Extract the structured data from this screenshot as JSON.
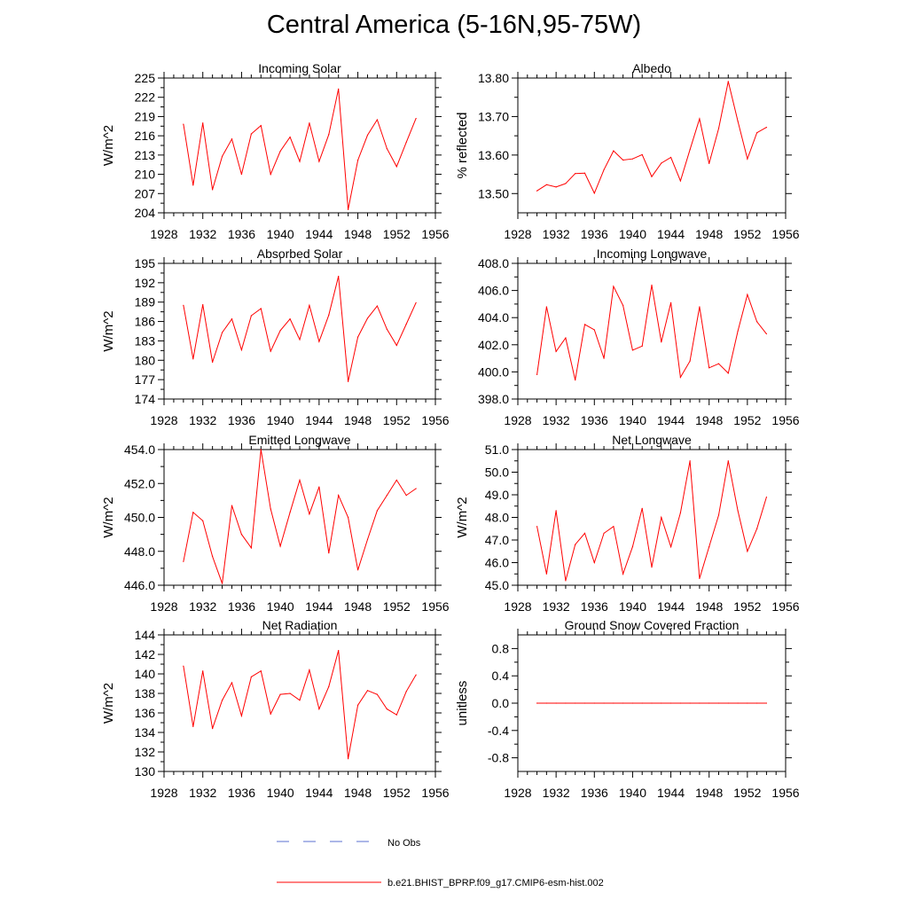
{
  "figure_title": "Central America (5-16N,95-75W)",
  "legend": {
    "obs_label": "No Obs",
    "model_label": "b.e21.BHIST_BPRP.f09_g17.CMIP6-esm-hist.002",
    "obs_color": "#5a6fd0",
    "model_color": "#ff0000"
  },
  "chart_data": [
    {
      "type": "line",
      "title": "Incoming Solar",
      "ylabel": "W/m^2",
      "xlim": [
        1928,
        1956
      ],
      "ylim": [
        204,
        225
      ],
      "yticks": [
        "204",
        "207",
        "210",
        "213",
        "216",
        "219",
        "222",
        "225"
      ],
      "ytick_values": [
        204,
        207,
        210,
        213,
        216,
        219,
        222,
        225
      ],
      "xticks": [
        "1928",
        "1932",
        "1936",
        "1940",
        "1944",
        "1948",
        "1952",
        "1956"
      ],
      "x": [
        1930,
        1931,
        1932,
        1933,
        1934,
        1935,
        1936,
        1937,
        1938,
        1939,
        1940,
        1941,
        1942,
        1943,
        1944,
        1945,
        1946,
        1947,
        1948,
        1949,
        1950,
        1951,
        1952,
        1953,
        1954
      ],
      "series": [
        {
          "name": "b.e21.BHIST_BPRP.f09_g17.CMIP6-esm-hist.002",
          "values": [
            217.8,
            208.3,
            218.0,
            207.6,
            212.8,
            215.5,
            210.0,
            216.3,
            217.6,
            210.0,
            213.6,
            215.8,
            212.0,
            218.0,
            212.0,
            216.2,
            223.3,
            204.5,
            212.2,
            216.1,
            218.5,
            214.0,
            211.2,
            215.0,
            218.7
          ]
        }
      ]
    },
    {
      "type": "line",
      "title": "Albedo",
      "ylabel": "% reflected",
      "xlim": [
        1928,
        1956
      ],
      "ylim": [
        13.45,
        13.8
      ],
      "yticks": [
        "13.50",
        "13.60",
        "13.70",
        "13.80"
      ],
      "ytick_values": [
        13.5,
        13.6,
        13.7,
        13.8
      ],
      "xticks": [
        "1928",
        "1932",
        "1936",
        "1940",
        "1944",
        "1948",
        "1952",
        "1956"
      ],
      "x": [
        1930,
        1931,
        1932,
        1933,
        1934,
        1935,
        1936,
        1937,
        1938,
        1939,
        1940,
        1941,
        1942,
        1943,
        1944,
        1945,
        1946,
        1947,
        1948,
        1949,
        1950,
        1951,
        1952,
        1953,
        1954
      ],
      "series": [
        {
          "name": "b.e21.BHIST_BPRP.f09_g17.CMIP6-esm-hist.002",
          "values": [
            13.507,
            13.523,
            13.517,
            13.526,
            13.552,
            13.553,
            13.501,
            13.562,
            13.611,
            13.587,
            13.59,
            13.601,
            13.544,
            13.579,
            13.594,
            13.533,
            13.614,
            13.694,
            13.578,
            13.669,
            13.791,
            13.688,
            13.59,
            13.658,
            13.672
          ]
        }
      ]
    },
    {
      "type": "line",
      "title": "Absorbed Solar",
      "ylabel": "W/m^2",
      "xlim": [
        1928,
        1956
      ],
      "ylim": [
        174,
        195
      ],
      "yticks": [
        "174",
        "177",
        "180",
        "183",
        "186",
        "189",
        "192",
        "195"
      ],
      "ytick_values": [
        174,
        177,
        180,
        183,
        186,
        189,
        192,
        195
      ],
      "xticks": [
        "1928",
        "1932",
        "1936",
        "1940",
        "1944",
        "1948",
        "1952",
        "1956"
      ],
      "x": [
        1930,
        1931,
        1932,
        1933,
        1934,
        1935,
        1936,
        1937,
        1938,
        1939,
        1940,
        1941,
        1942,
        1943,
        1944,
        1945,
        1946,
        1947,
        1948,
        1949,
        1950,
        1951,
        1952,
        1953,
        1954
      ],
      "series": [
        {
          "name": "b.e21.BHIST_BPRP.f09_g17.CMIP6-esm-hist.002",
          "values": [
            188.5,
            180.2,
            188.6,
            179.7,
            184.3,
            186.4,
            181.6,
            186.9,
            188.0,
            181.4,
            184.6,
            186.4,
            183.2,
            188.5,
            182.9,
            187.0,
            193.0,
            176.7,
            183.6,
            186.5,
            188.4,
            184.8,
            182.3,
            185.6,
            188.9
          ]
        }
      ]
    },
    {
      "type": "line",
      "title": "Incoming Longwave",
      "ylabel": "",
      "xlim": [
        1928,
        1956
      ],
      "ylim": [
        398.0,
        408.0
      ],
      "yticks": [
        "398.0",
        "400.0",
        "402.0",
        "404.0",
        "406.0",
        "408.0"
      ],
      "ytick_values": [
        398.0,
        400.0,
        402.0,
        404.0,
        406.0,
        408.0
      ],
      "xticks": [
        "1928",
        "1932",
        "1936",
        "1940",
        "1944",
        "1948",
        "1952",
        "1956"
      ],
      "x": [
        1930,
        1931,
        1932,
        1933,
        1934,
        1935,
        1936,
        1937,
        1938,
        1939,
        1940,
        1941,
        1942,
        1943,
        1944,
        1945,
        1946,
        1947,
        1948,
        1949,
        1950,
        1951,
        1952,
        1953,
        1954
      ],
      "series": [
        {
          "name": "b.e21.BHIST_BPRP.f09_g17.CMIP6-esm-hist.002",
          "values": [
            399.8,
            404.8,
            401.5,
            402.5,
            399.4,
            403.5,
            403.1,
            401.0,
            406.3,
            404.9,
            401.6,
            401.9,
            406.4,
            402.2,
            405.1,
            399.6,
            400.8,
            404.8,
            400.3,
            400.6,
            399.9,
            403.0,
            405.7,
            403.7,
            402.8
          ]
        }
      ]
    },
    {
      "type": "line",
      "title": "Emitted Longwave",
      "ylabel": "W/m^2",
      "xlim": [
        1928,
        1956
      ],
      "ylim": [
        446.0,
        454.0
      ],
      "yticks": [
        "446.0",
        "448.0",
        "450.0",
        "452.0",
        "454.0"
      ],
      "ytick_values": [
        446.0,
        448.0,
        450.0,
        452.0,
        454.0
      ],
      "xticks": [
        "1928",
        "1932",
        "1936",
        "1940",
        "1944",
        "1948",
        "1952",
        "1956"
      ],
      "x": [
        1930,
        1931,
        1932,
        1933,
        1934,
        1935,
        1936,
        1937,
        1938,
        1939,
        1940,
        1941,
        1942,
        1943,
        1944,
        1945,
        1946,
        1947,
        1948,
        1949,
        1950,
        1951,
        1952,
        1953,
        1954
      ],
      "series": [
        {
          "name": "b.e21.BHIST_BPRP.f09_g17.CMIP6-esm-hist.002",
          "values": [
            447.4,
            450.3,
            449.8,
            447.7,
            446.1,
            450.7,
            449.0,
            448.2,
            454.0,
            450.5,
            448.3,
            450.3,
            452.2,
            450.2,
            451.8,
            447.9,
            451.3,
            450.0,
            446.9,
            448.7,
            450.4,
            451.3,
            452.2,
            451.3,
            451.7
          ]
        }
      ]
    },
    {
      "type": "line",
      "title": "Net Longwave",
      "ylabel": "W/m^2",
      "xlim": [
        1928,
        1956
      ],
      "ylim": [
        45.0,
        51.0
      ],
      "yticks": [
        "45.0",
        "46.0",
        "47.0",
        "48.0",
        "49.0",
        "50.0",
        "51.0"
      ],
      "ytick_values": [
        45.0,
        46.0,
        47.0,
        48.0,
        49.0,
        50.0,
        51.0
      ],
      "xticks": [
        "1928",
        "1932",
        "1936",
        "1940",
        "1944",
        "1948",
        "1952",
        "1956"
      ],
      "x": [
        1930,
        1931,
        1932,
        1933,
        1934,
        1935,
        1936,
        1937,
        1938,
        1939,
        1940,
        1941,
        1942,
        1943,
        1944,
        1945,
        1946,
        1947,
        1948,
        1949,
        1950,
        1951,
        1952,
        1953,
        1954
      ],
      "series": [
        {
          "name": "b.e21.BHIST_BPRP.f09_g17.CMIP6-esm-hist.002",
          "values": [
            47.6,
            45.5,
            48.3,
            45.2,
            46.8,
            47.3,
            46.0,
            47.3,
            47.6,
            45.5,
            46.7,
            48.4,
            45.8,
            48.0,
            46.7,
            48.2,
            50.5,
            45.3,
            46.7,
            48.1,
            50.5,
            48.3,
            46.5,
            47.5,
            48.9
          ]
        }
      ]
    },
    {
      "type": "line",
      "title": "Net Radiation",
      "ylabel": "W/m^2",
      "xlim": [
        1928,
        1956
      ],
      "ylim": [
        130,
        144
      ],
      "yticks": [
        "130",
        "132",
        "134",
        "136",
        "138",
        "140",
        "142",
        "144"
      ],
      "ytick_values": [
        130,
        132,
        134,
        136,
        138,
        140,
        142,
        144
      ],
      "xticks": [
        "1928",
        "1932",
        "1936",
        "1940",
        "1944",
        "1948",
        "1952",
        "1956"
      ],
      "x": [
        1930,
        1931,
        1932,
        1933,
        1934,
        1935,
        1936,
        1937,
        1938,
        1939,
        1940,
        1941,
        1942,
        1943,
        1944,
        1945,
        1946,
        1947,
        1948,
        1949,
        1950,
        1951,
        1952,
        1953,
        1954
      ],
      "series": [
        {
          "name": "b.e21.BHIST_BPRP.f09_g17.CMIP6-esm-hist.002",
          "values": [
            140.8,
            134.6,
            140.3,
            134.4,
            137.3,
            139.1,
            135.7,
            139.7,
            140.3,
            135.9,
            137.9,
            138.0,
            137.3,
            140.4,
            136.4,
            138.7,
            142.4,
            131.3,
            136.8,
            138.3,
            137.9,
            136.4,
            135.8,
            138.2,
            139.9
          ]
        }
      ]
    },
    {
      "type": "line",
      "title": "Ground Snow Covered Fraction",
      "ylabel": "unitless",
      "xlim": [
        1928,
        1956
      ],
      "ylim": [
        -1.0,
        1.0
      ],
      "yticks": [
        "-0.8",
        "-0.4",
        "0.0",
        "0.4",
        "0.8"
      ],
      "ytick_values": [
        -0.8,
        -0.4,
        0.0,
        0.4,
        0.8
      ],
      "xticks": [
        "1928",
        "1932",
        "1936",
        "1940",
        "1944",
        "1948",
        "1952",
        "1956"
      ],
      "x": [
        1930,
        1931,
        1932,
        1933,
        1934,
        1935,
        1936,
        1937,
        1938,
        1939,
        1940,
        1941,
        1942,
        1943,
        1944,
        1945,
        1946,
        1947,
        1948,
        1949,
        1950,
        1951,
        1952,
        1953,
        1954
      ],
      "series": [
        {
          "name": "b.e21.BHIST_BPRP.f09_g17.CMIP6-esm-hist.002",
          "values": [
            0,
            0,
            0,
            0,
            0,
            0,
            0,
            0,
            0,
            0,
            0,
            0,
            0,
            0,
            0,
            0,
            0,
            0,
            0,
            0,
            0,
            0,
            0,
            0,
            0
          ]
        }
      ]
    }
  ]
}
